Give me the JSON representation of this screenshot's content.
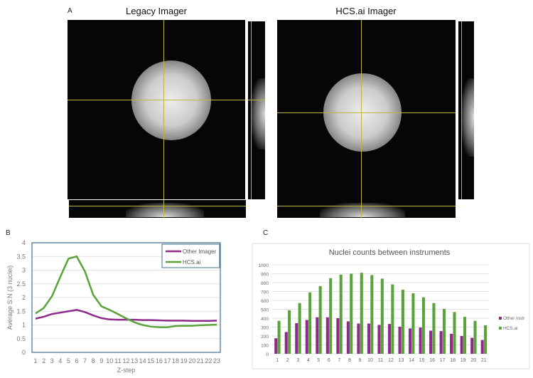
{
  "panel_a": {
    "label": "A",
    "left_title": "Legacy Imager",
    "right_title": "HCS.ai Imager"
  },
  "chart_data": [
    {
      "panel": "B",
      "type": "line",
      "xlabel": "Z-step",
      "ylabel": "Average S:N (3 nuclei)",
      "ylim": [
        0,
        4
      ],
      "yticks": [
        "0",
        "0.5",
        "1",
        "1.5",
        "2",
        "2.5",
        "3",
        "3.5",
        "4"
      ],
      "grid": true,
      "legend": "top-right",
      "x": [
        1,
        2,
        3,
        4,
        5,
        6,
        7,
        8,
        9,
        10,
        11,
        12,
        13,
        14,
        15,
        16,
        17,
        18,
        19,
        20,
        21,
        22,
        23
      ],
      "series": [
        {
          "name": "Other Imager",
          "color": "#8e2a8a",
          "values": [
            1.23,
            1.3,
            1.4,
            1.45,
            1.5,
            1.55,
            1.47,
            1.35,
            1.25,
            1.2,
            1.19,
            1.19,
            1.19,
            1.18,
            1.18,
            1.17,
            1.16,
            1.16,
            1.16,
            1.15,
            1.15,
            1.15,
            1.16
          ]
        },
        {
          "name": "HCS.ai",
          "color": "#5aa33a",
          "values": [
            1.42,
            1.62,
            2.05,
            2.75,
            3.42,
            3.5,
            2.95,
            2.1,
            1.68,
            1.55,
            1.4,
            1.24,
            1.1,
            1.0,
            0.94,
            0.92,
            0.92,
            0.96,
            0.97,
            0.97,
            0.99,
            1.0,
            1.01
          ]
        }
      ]
    },
    {
      "panel": "C",
      "type": "bar",
      "title": "Nuclei counts between instruments",
      "ylim": [
        0,
        1000
      ],
      "yticks": [
        "0",
        "100",
        "200",
        "300",
        "400",
        "500",
        "600",
        "700",
        "800",
        "900",
        "1000"
      ],
      "grid": true,
      "legend": "right",
      "categories": [
        "1",
        "2",
        "3",
        "4",
        "5",
        "6",
        "7",
        "8",
        "9",
        "10",
        "11",
        "12",
        "13",
        "14",
        "15",
        "16",
        "17",
        "18",
        "19",
        "20",
        "21"
      ],
      "series": [
        {
          "name": "Other instr",
          "color": "#8e2a8a",
          "values": [
            175,
            245,
            345,
            380,
            410,
            410,
            400,
            365,
            340,
            340,
            325,
            335,
            305,
            285,
            295,
            260,
            255,
            225,
            200,
            180,
            155
          ]
        },
        {
          "name": "HCS.ai",
          "color": "#5aa33a",
          "values": [
            370,
            490,
            570,
            690,
            760,
            850,
            890,
            900,
            910,
            885,
            845,
            780,
            720,
            680,
            635,
            570,
            505,
            470,
            415,
            370,
            320
          ]
        }
      ]
    }
  ]
}
